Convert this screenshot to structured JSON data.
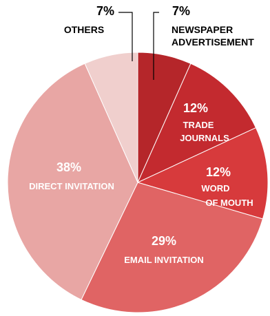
{
  "chart_data": {
    "type": "pie",
    "title": "",
    "slices": [
      {
        "label": "NEWSPAPER ADVERTISEMENT",
        "value": 7,
        "value_text": "7%",
        "color": "#b5262a",
        "label_color": "#000000"
      },
      {
        "label": "TRADE JOURNALS",
        "value": 12,
        "value_text": "12%",
        "color": "#c32a2f",
        "label_color": "#ffffff"
      },
      {
        "label": "WORD OF MOUTH",
        "value": 12,
        "value_text": "12%",
        "color": "#d73a3c",
        "label_color": "#ffffff"
      },
      {
        "label": "EMAIL INVITATION",
        "value": 29,
        "value_text": "29%",
        "color": "#e06464",
        "label_color": "#ffffff"
      },
      {
        "label": "DIRECT INVITATION",
        "value": 38,
        "value_text": "38%",
        "color": "#e8a6a4",
        "label_color": "#ffffff"
      },
      {
        "label": "OTHERS",
        "value": 7,
        "value_text": "7%",
        "color": "#f0cfcd",
        "label_color": "#000000"
      }
    ]
  },
  "text_lines": {
    "newspaper": [
      "NEWSPAPER",
      "ADVERTISEMENT"
    ],
    "trade": [
      "TRADE",
      "JOURNALS"
    ],
    "word": [
      "WORD",
      "OF MOUTH"
    ],
    "email": [
      "EMAIL INVITATION"
    ],
    "direct": [
      "DIRECT INVITATION"
    ],
    "others": [
      "OTHERS"
    ]
  }
}
